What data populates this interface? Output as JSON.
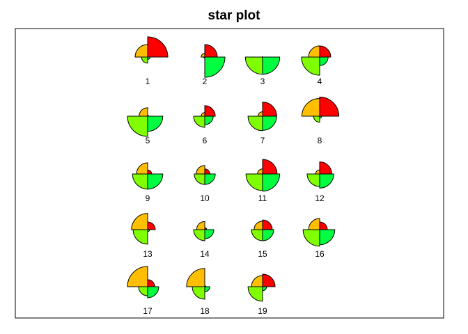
{
  "chart_data": {
    "type": "segment-star",
    "title": "star plot",
    "colors": {
      "east": "#00FF40",
      "north": "#FF0000",
      "west": "#FFBF00",
      "south": "#80FF00"
    },
    "segment_order": [
      "east",
      "north",
      "west",
      "south"
    ],
    "items": [
      {
        "label": "1",
        "east": 0.12,
        "north": 1.0,
        "west": 0.62,
        "south": 0.3
      },
      {
        "label": "2",
        "east": 1.0,
        "north": 0.62,
        "west": 0.18,
        "south": 0.05
      },
      {
        "label": "3",
        "east": 0.85,
        "north": 0.0,
        "west": 0.02,
        "south": 0.85
      },
      {
        "label": "4",
        "east": 0.42,
        "north": 0.55,
        "west": 0.55,
        "south": 0.9
      },
      {
        "label": "5",
        "east": 0.75,
        "north": 0.05,
        "west": 0.42,
        "south": 1.0
      },
      {
        "label": "6",
        "east": 0.42,
        "north": 0.52,
        "west": 0.18,
        "south": 0.55
      },
      {
        "label": "7",
        "east": 0.7,
        "north": 0.7,
        "west": 0.22,
        "south": 0.72
      },
      {
        "label": "8",
        "east": 0.1,
        "north": 0.95,
        "west": 0.88,
        "south": 0.3
      },
      {
        "label": "9",
        "east": 0.75,
        "north": 0.2,
        "west": 0.55,
        "south": 0.75
      },
      {
        "label": "10",
        "east": 0.52,
        "north": 0.25,
        "west": 0.42,
        "south": 0.52
      },
      {
        "label": "11",
        "east": 0.85,
        "north": 0.72,
        "west": 0.25,
        "south": 0.82
      },
      {
        "label": "12",
        "east": 0.7,
        "north": 0.6,
        "west": 0.2,
        "south": 0.62
      },
      {
        "label": "13",
        "east": 0.1,
        "north": 0.38,
        "west": 0.8,
        "south": 0.72
      },
      {
        "label": "14",
        "east": 0.45,
        "north": 0.1,
        "west": 0.4,
        "south": 0.55
      },
      {
        "label": "15",
        "east": 0.55,
        "north": 0.48,
        "west": 0.42,
        "south": 0.55
      },
      {
        "label": "16",
        "east": 0.75,
        "north": 0.38,
        "west": 0.55,
        "south": 0.82
      },
      {
        "label": "17",
        "east": 0.55,
        "north": 0.35,
        "west": 1.0,
        "south": 0.45
      },
      {
        "label": "18",
        "east": 0.25,
        "north": 0.05,
        "west": 0.9,
        "south": 0.62
      },
      {
        "label": "19",
        "east": 0.2,
        "north": 0.62,
        "west": 0.55,
        "south": 0.72
      }
    ]
  }
}
